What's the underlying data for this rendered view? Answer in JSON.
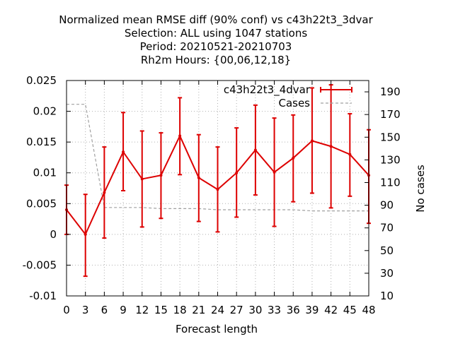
{
  "chart_data": {
    "type": "line",
    "title_lines": [
      "Normalized mean RMSE diff (90% conf) vs c43h22t3_3dvar",
      "Selection: ALL using  1047 stations",
      "Period: 20210521-20210703",
      "Rh2m   Hours: {00,06,12,18}"
    ],
    "xlabel": "Forecast length",
    "ylabel_right": "No cases",
    "xlim": [
      0,
      48
    ],
    "ylim": [
      -0.01,
      0.025
    ],
    "y2lim": [
      10,
      200
    ],
    "grid": true,
    "legend_position": "top-right",
    "x_ticks": [
      0,
      3,
      6,
      9,
      12,
      15,
      18,
      21,
      24,
      27,
      30,
      33,
      36,
      39,
      42,
      45,
      48
    ],
    "y_ticks": [
      -0.01,
      -0.005,
      0,
      0.005,
      0.01,
      0.015,
      0.02,
      0.025
    ],
    "y_tick_labels": [
      "-0.01",
      "-0.005",
      "0",
      "0.005",
      "0.01",
      "0.015",
      "0.02",
      "0.025"
    ],
    "y2_ticks": [
      10,
      30,
      50,
      70,
      90,
      110,
      130,
      150,
      170,
      190
    ],
    "series": [
      {
        "name": "c43h22t3_4dvar",
        "color": "#dd0000",
        "x": [
          0,
          3,
          6,
          9,
          12,
          15,
          18,
          21,
          24,
          27,
          30,
          33,
          36,
          39,
          42,
          45,
          48
        ],
        "y": [
          0.004,
          0.0,
          0.0068,
          0.0134,
          0.009,
          0.0096,
          0.016,
          0.0092,
          0.0073,
          0.01,
          0.0137,
          0.0101,
          0.0124,
          0.0152,
          0.0143,
          0.013,
          0.0096
        ],
        "y_low": [
          0.0,
          -0.0068,
          -0.0006,
          0.0071,
          0.0012,
          0.0026,
          0.0097,
          0.0021,
          0.0004,
          0.0028,
          0.0064,
          0.0013,
          0.0053,
          0.0067,
          0.0043,
          0.0062,
          0.0018
        ],
        "y_high": [
          0.008,
          0.0065,
          0.0142,
          0.0198,
          0.0168,
          0.0165,
          0.0222,
          0.0162,
          0.0142,
          0.0173,
          0.021,
          0.0189,
          0.0194,
          0.0238,
          0.0243,
          0.0196,
          0.017
        ]
      },
      {
        "name": "Cases",
        "color": "#a0a0a0",
        "axis": "right",
        "x": [
          0,
          3,
          6,
          9,
          12,
          15,
          18,
          21,
          24,
          27,
          30,
          33,
          36,
          39,
          42,
          45,
          48
        ],
        "y": [
          179,
          179,
          88,
          88,
          88,
          87,
          87,
          87,
          86,
          86,
          86,
          86,
          86,
          85,
          85,
          85,
          85
        ]
      }
    ]
  }
}
